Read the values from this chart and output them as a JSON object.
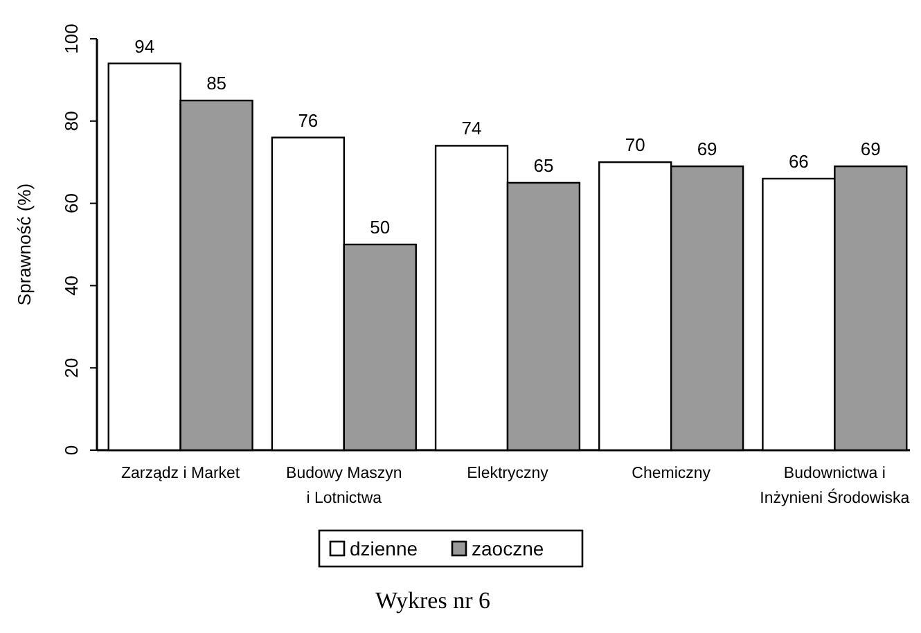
{
  "chart_data": {
    "type": "bar",
    "ylabel": "Sprawność (%)",
    "categories": [
      "Zarządz  i Market",
      "Budowy Maszyn\ni Lotnictwa",
      "Elektryczny",
      "Chemiczny",
      "Budownictwa i\nInżynieni Środowiska"
    ],
    "series": [
      {
        "name": "dzienne",
        "color": "#ffffff",
        "values": [
          94,
          76,
          74,
          70,
          66
        ]
      },
      {
        "name": "zaoczne",
        "color": "#9a9a9a",
        "values": [
          85,
          50,
          65,
          69,
          69
        ]
      }
    ],
    "ylim": [
      0,
      100
    ],
    "yticks": [
      0,
      20,
      40,
      60,
      80,
      100
    ],
    "data_labels": true,
    "legend": "bottom",
    "annotations": [
      "Wykres nr 6"
    ]
  }
}
